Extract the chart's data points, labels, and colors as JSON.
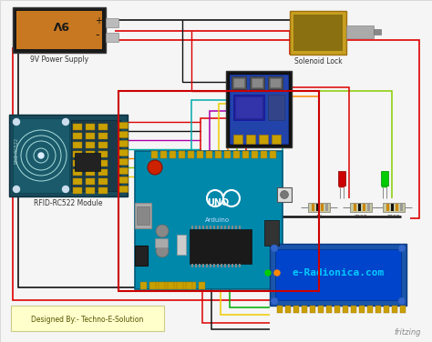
{
  "bg_color": "#ffffff",
  "designer_text": "Designed By:- Techno-E-Solution",
  "designer_bg": "#ffffcc",
  "brand_text": "fritzing",
  "lcd_text": "e-Radionica.com",
  "lcd_text_color": "#00ccff",
  "battery_color": "#1a1a1a",
  "battery_orange": "#d4820a",
  "rfid_color": "#1a4a5a",
  "relay_color": "#111111",
  "relay_blue": "#2244aa",
  "solenoid_color": "#c8a020",
  "arduino_color": "#0088aa",
  "lcd_outer": "#1a55aa",
  "lcd_inner": "#0044cc",
  "wire_red": "#dd0000",
  "wire_black": "#111111",
  "wire_yellow": "#eecc00",
  "wire_orange": "#ff8800",
  "wire_purple": "#aa00aa",
  "wire_green": "#00aa00",
  "wire_cyan": "#00aaaa",
  "wire_blue": "#0000dd",
  "wire_lime": "#88cc00",
  "wire_magenta": "#dd00dd"
}
